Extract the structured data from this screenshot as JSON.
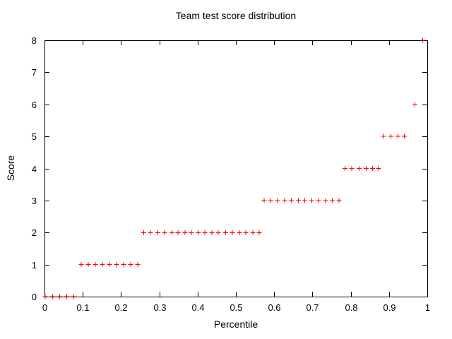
{
  "window": {
    "background": "#ffffff"
  },
  "chart_data": {
    "type": "scatter",
    "title": "Team test score distribution",
    "xlabel": "Percentile",
    "ylabel": "Score",
    "xlim": [
      0,
      1
    ],
    "ylim": [
      0,
      8
    ],
    "grid": false,
    "legend": "none",
    "marker": {
      "style": "plus",
      "color": "#ff0000",
      "half_size": 3.5
    },
    "axis_color": "#000000",
    "x_ticks": [
      {
        "value": 0.0,
        "label": "0"
      },
      {
        "value": 0.1,
        "label": "0.1"
      },
      {
        "value": 0.2,
        "label": "0.2"
      },
      {
        "value": 0.3,
        "label": "0.3"
      },
      {
        "value": 0.4,
        "label": "0.4"
      },
      {
        "value": 0.5,
        "label": "0.5"
      },
      {
        "value": 0.6,
        "label": "0.6"
      },
      {
        "value": 0.7,
        "label": "0.7"
      },
      {
        "value": 0.8,
        "label": "0.8"
      },
      {
        "value": 0.9,
        "label": "0.9"
      },
      {
        "value": 1.0,
        "label": "1"
      }
    ],
    "y_ticks": [
      {
        "value": 0,
        "label": "0"
      },
      {
        "value": 1,
        "label": "1"
      },
      {
        "value": 2,
        "label": "2"
      },
      {
        "value": 3,
        "label": "3"
      },
      {
        "value": 4,
        "label": "4"
      },
      {
        "value": 5,
        "label": "5"
      },
      {
        "value": 6,
        "label": "6"
      },
      {
        "value": 7,
        "label": "7"
      },
      {
        "value": 8,
        "label": "8"
      }
    ],
    "series": [
      {
        "score": 0,
        "percentiles": [
          0.002,
          0.021,
          0.04,
          0.058,
          0.077
        ]
      },
      {
        "score": 1,
        "percentiles": [
          0.096,
          0.114,
          0.133,
          0.151,
          0.17,
          0.188,
          0.207,
          0.225,
          0.244
        ]
      },
      {
        "score": 2,
        "percentiles": [
          0.259,
          0.277,
          0.296,
          0.314,
          0.333,
          0.349,
          0.367,
          0.384,
          0.401,
          0.419,
          0.437,
          0.454,
          0.473,
          0.491,
          0.509,
          0.526,
          0.544,
          0.561
        ]
      },
      {
        "score": 3,
        "percentiles": [
          0.574,
          0.591,
          0.609,
          0.627,
          0.645,
          0.663,
          0.68,
          0.698,
          0.716,
          0.734,
          0.752,
          0.769
        ]
      },
      {
        "score": 4,
        "percentiles": [
          0.785,
          0.803,
          0.822,
          0.84,
          0.857,
          0.873
        ]
      },
      {
        "score": 5,
        "percentiles": [
          0.886,
          0.905,
          0.923,
          0.94
        ]
      },
      {
        "score": 6,
        "percentiles": [
          0.968
        ]
      },
      {
        "score": 8,
        "percentiles": [
          0.988
        ]
      }
    ]
  }
}
